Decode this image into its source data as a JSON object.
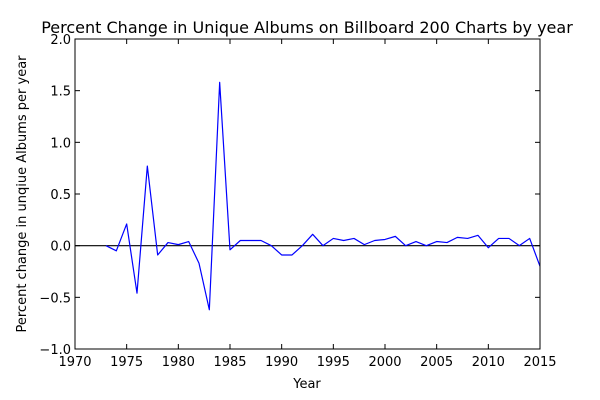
{
  "chart_data": {
    "type": "line",
    "title": "Percent Change in Unique Albums on Billboard 200 Charts by year",
    "xlabel": "Year",
    "ylabel": "Percent change in unqiue Albums per year",
    "xlim": [
      1970,
      2015
    ],
    "ylim": [
      -1.0,
      2.0
    ],
    "xticks": [
      1970,
      1975,
      1980,
      1985,
      1990,
      1995,
      2000,
      2005,
      2010,
      2015
    ],
    "xtick_labels": [
      "1970",
      "1975",
      "1980",
      "1985",
      "1990",
      "1995",
      "2000",
      "2005",
      "2010",
      "2015"
    ],
    "yticks": [
      -1.0,
      -0.5,
      0.0,
      0.5,
      1.0,
      1.5,
      2.0
    ],
    "ytick_labels": [
      "−1.0",
      "−0.5",
      "0.0",
      "0.5",
      "1.0",
      "1.5",
      "2.0"
    ],
    "grid": false,
    "reference_line": {
      "y": 0.0,
      "color": "#000000"
    },
    "series": [
      {
        "color": "#0000ff",
        "x": [
          1973,
          1974,
          1975,
          1976,
          1977,
          1978,
          1979,
          1980,
          1981,
          1982,
          1983,
          1984,
          1985,
          1986,
          1987,
          1988,
          1989,
          1990,
          1991,
          1992,
          1993,
          1994,
          1995,
          1996,
          1997,
          1998,
          1999,
          2000,
          2001,
          2002,
          2003,
          2004,
          2005,
          2006,
          2007,
          2008,
          2009,
          2010,
          2011,
          2012,
          2013,
          2014,
          2015
        ],
        "y": [
          0.0,
          -0.05,
          0.21,
          -0.46,
          0.77,
          -0.09,
          0.03,
          0.01,
          0.04,
          -0.17,
          -0.62,
          1.58,
          -0.04,
          0.05,
          0.05,
          0.05,
          0.0,
          -0.09,
          -0.09,
          0.0,
          0.11,
          0.0,
          0.07,
          0.05,
          0.07,
          0.01,
          0.05,
          0.06,
          0.09,
          0.0,
          0.04,
          0.0,
          0.04,
          0.03,
          0.08,
          0.07,
          0.1,
          -0.02,
          0.07,
          0.07,
          0.0,
          0.07,
          -0.2
        ]
      }
    ]
  }
}
